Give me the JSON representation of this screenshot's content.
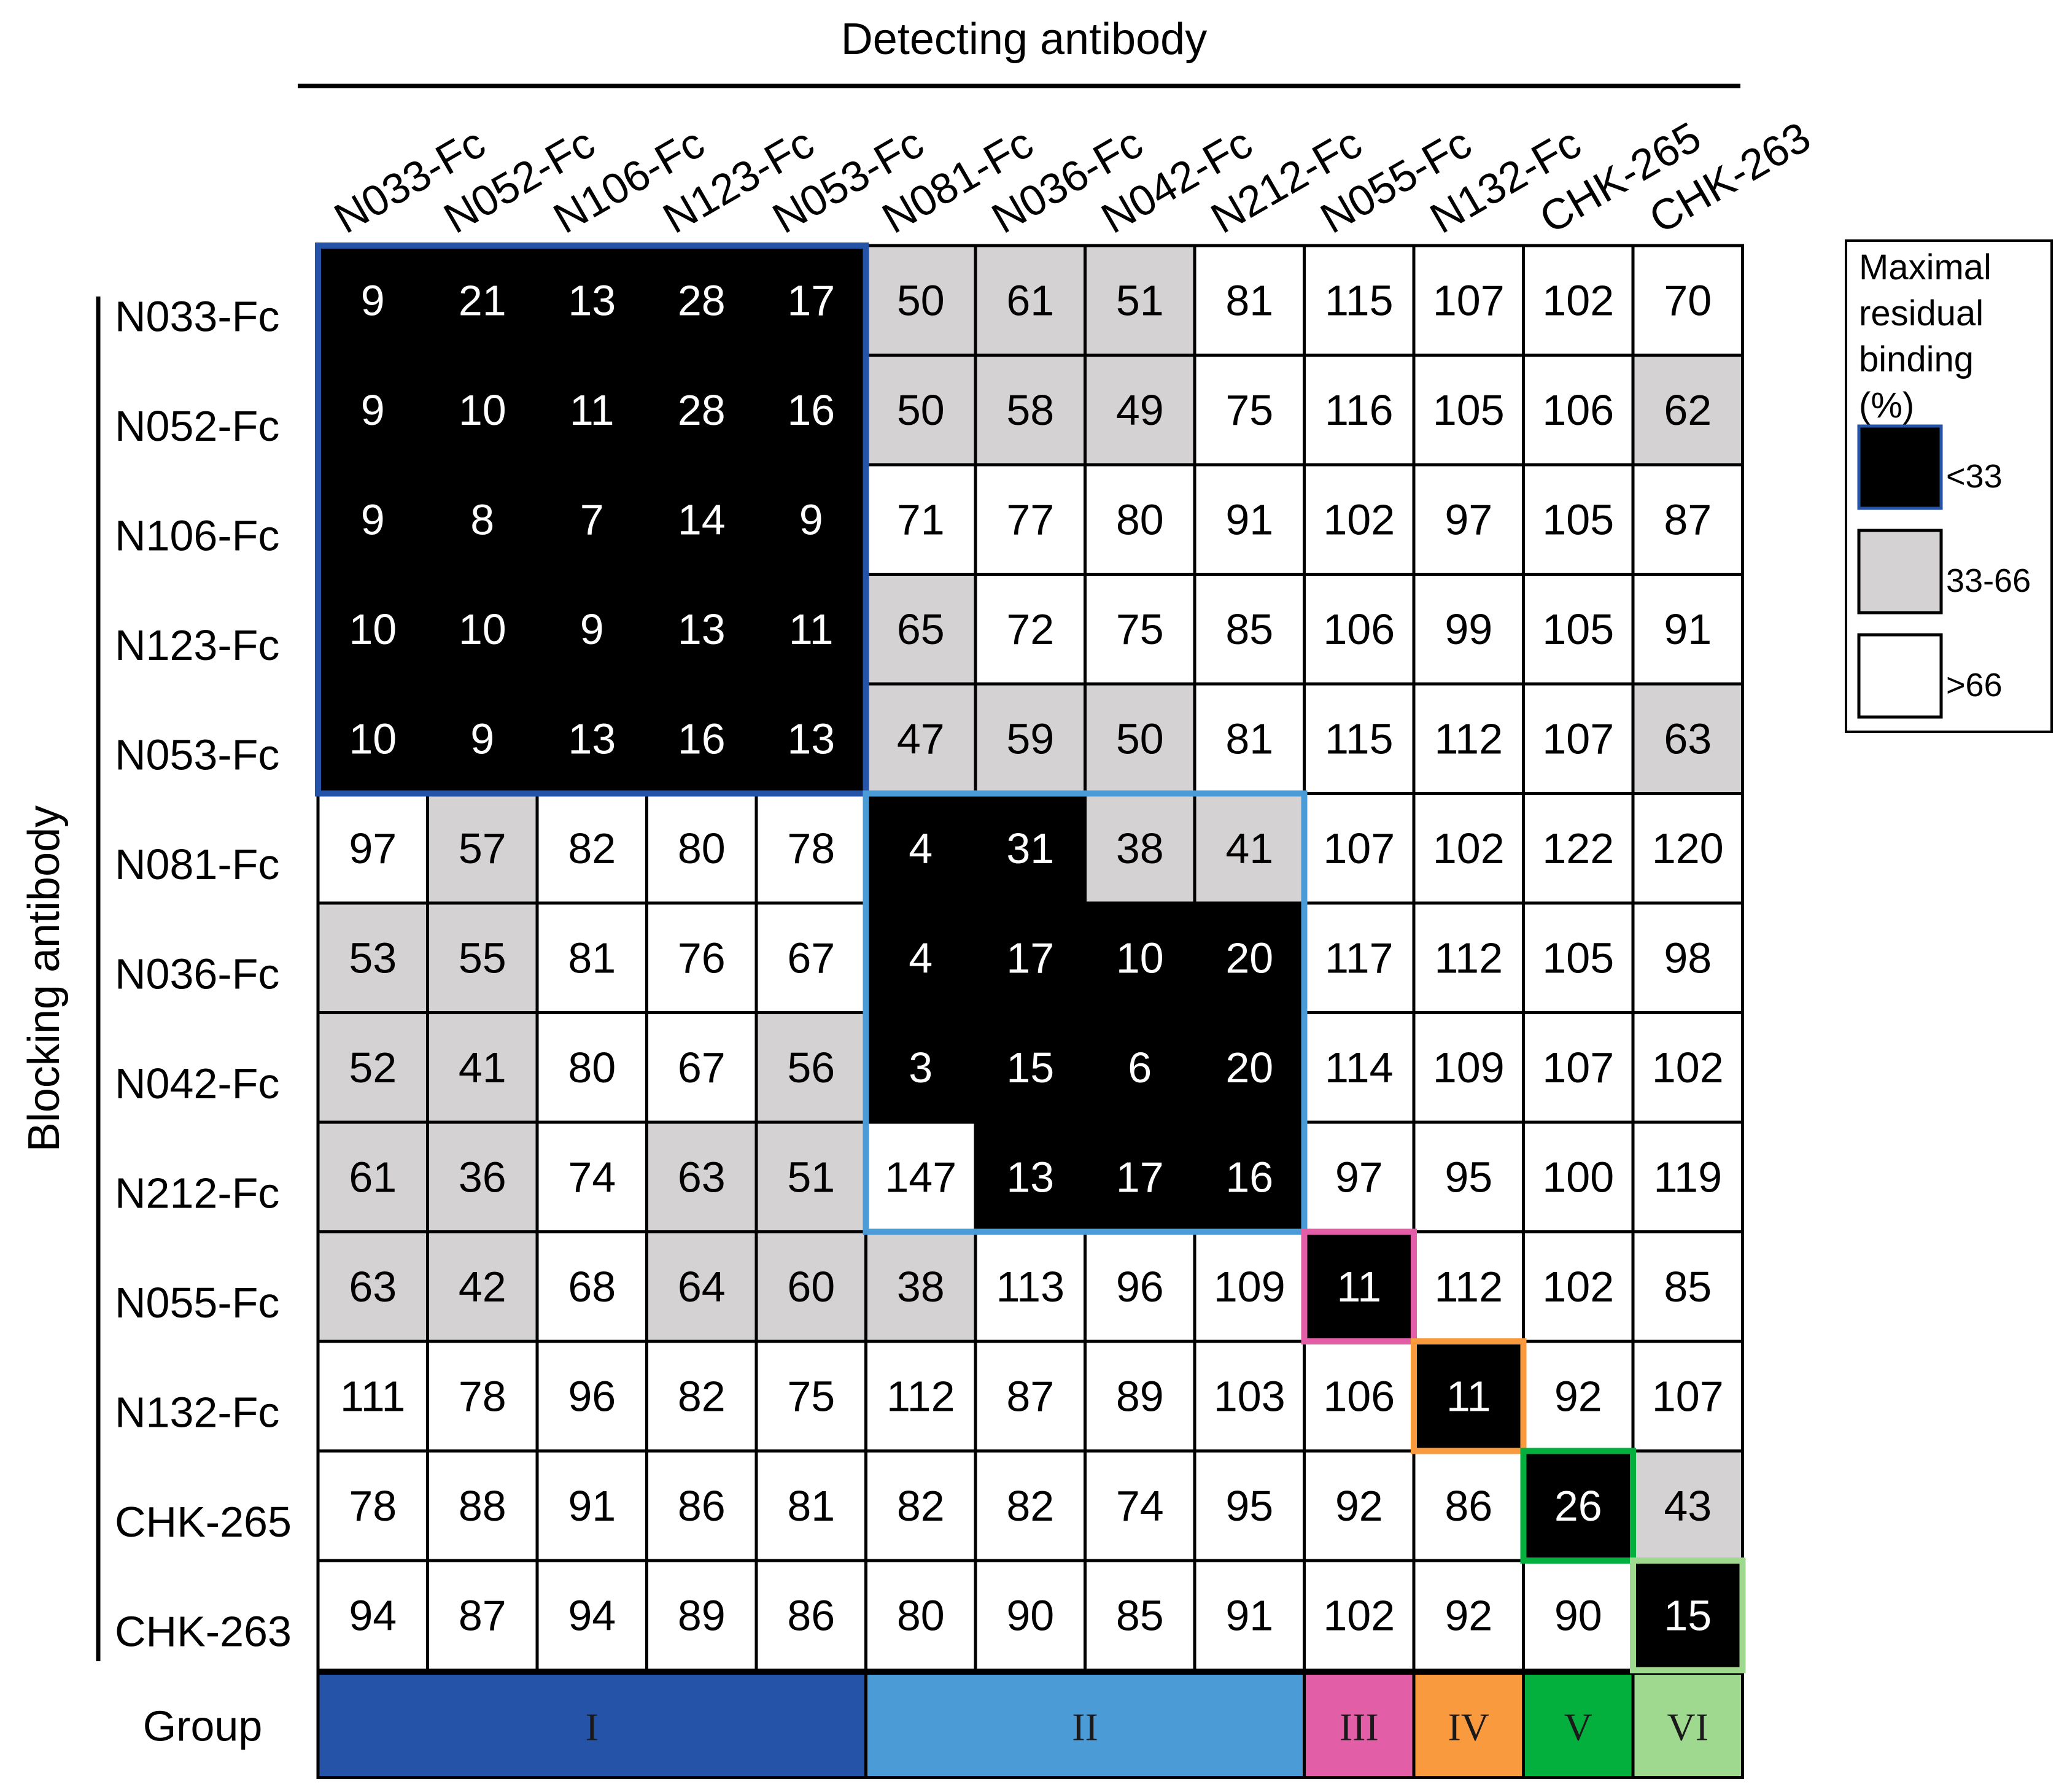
{
  "chart_data": {
    "type": "heatmap",
    "title": "",
    "xlabel": "Detecting antibody",
    "ylabel": "Blocking antibody",
    "columns": [
      "N033-Fc",
      "N052-Fc",
      "N106-Fc",
      "N123-Fc",
      "N053-Fc",
      "N081-Fc",
      "N036-Fc",
      "N042-Fc",
      "N212-Fc",
      "N055-Fc",
      "N132-Fc",
      "CHK-265",
      "CHK-263"
    ],
    "rows": [
      "N033-Fc",
      "N052-Fc",
      "N106-Fc",
      "N123-Fc",
      "N053-Fc",
      "N081-Fc",
      "N036-Fc",
      "N042-Fc",
      "N212-Fc",
      "N055-Fc",
      "N132-Fc",
      "CHK-265",
      "CHK-263"
    ],
    "values": [
      [
        9,
        21,
        13,
        28,
        17,
        50,
        61,
        51,
        81,
        115,
        107,
        102,
        70
      ],
      [
        9,
        10,
        11,
        28,
        16,
        50,
        58,
        49,
        75,
        116,
        105,
        106,
        62
      ],
      [
        9,
        8,
        7,
        14,
        9,
        71,
        77,
        80,
        91,
        102,
        97,
        105,
        87
      ],
      [
        10,
        10,
        9,
        13,
        11,
        65,
        72,
        75,
        85,
        106,
        99,
        105,
        91
      ],
      [
        10,
        9,
        13,
        16,
        13,
        47,
        59,
        50,
        81,
        115,
        112,
        107,
        63
      ],
      [
        97,
        57,
        82,
        80,
        78,
        4,
        31,
        38,
        41,
        107,
        102,
        122,
        120
      ],
      [
        53,
        55,
        81,
        76,
        67,
        4,
        17,
        10,
        20,
        117,
        112,
        105,
        98
      ],
      [
        52,
        41,
        80,
        67,
        56,
        3,
        15,
        6,
        20,
        114,
        109,
        107,
        102
      ],
      [
        61,
        36,
        74,
        63,
        51,
        147,
        13,
        17,
        16,
        97,
        95,
        100,
        119
      ],
      [
        63,
        42,
        68,
        64,
        60,
        38,
        113,
        96,
        109,
        11,
        112,
        102,
        85
      ],
      [
        111,
        78,
        96,
        82,
        75,
        112,
        87,
        89,
        103,
        106,
        11,
        92,
        107
      ],
      [
        78,
        88,
        91,
        86,
        81,
        82,
        82,
        74,
        95,
        92,
        86,
        26,
        43
      ],
      [
        94,
        87,
        94,
        89,
        86,
        80,
        90,
        85,
        91,
        102,
        92,
        90,
        15
      ]
    ],
    "bins": [
      {
        "label": "<33",
        "color": "#000000",
        "text_color": "#ffffff"
      },
      {
        "label": "33-66",
        "color": "#d4d2d3",
        "text_color": "#000000"
      },
      {
        "label": ">66",
        "color": "#ffffff",
        "text_color": "#000000"
      }
    ],
    "legend": {
      "title_lines": [
        "Maximal",
        "residual",
        "binding",
        "(%)"
      ],
      "placement": "right"
    },
    "group_row_label": "Group",
    "groups": [
      {
        "label": "I",
        "start": 0,
        "end": 4,
        "color": "#2553a8"
      },
      {
        "label": "II",
        "start": 5,
        "end": 8,
        "color": "#4a9bd6"
      },
      {
        "label": "III",
        "start": 9,
        "end": 9,
        "color": "#e25ea6"
      },
      {
        "label": "IV",
        "start": 10,
        "end": 10,
        "color": "#fa9a3e"
      },
      {
        "label": "V",
        "start": 11,
        "end": 11,
        "color": "#03b03e"
      },
      {
        "label": "VI",
        "start": 12,
        "end": 12,
        "color": "#9ed98f"
      }
    ]
  }
}
